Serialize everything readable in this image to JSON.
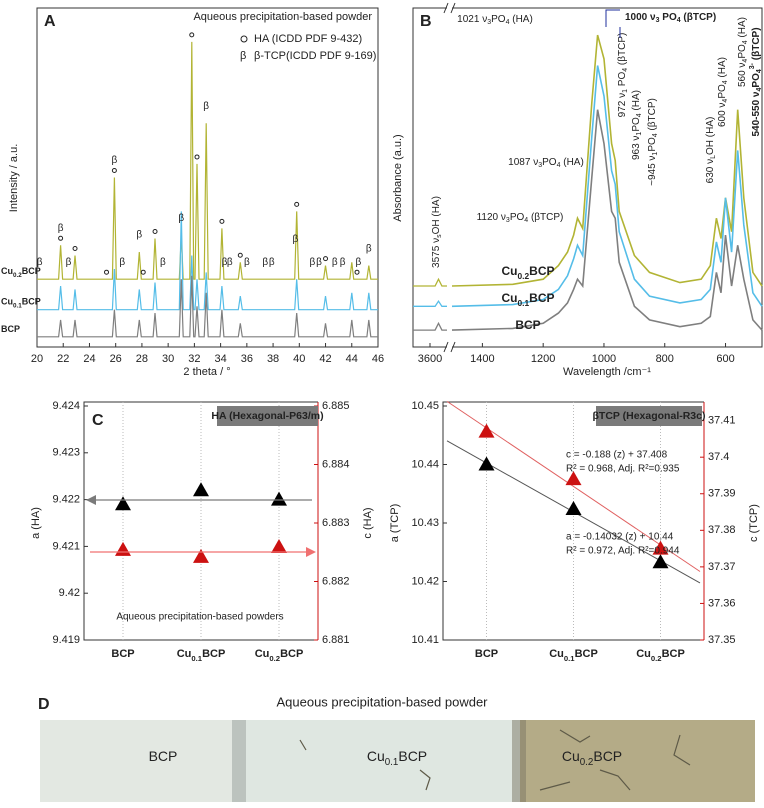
{
  "chart_data": [
    {
      "type": "line",
      "panel": "A",
      "title": "Aqueous precipitation-based powder",
      "xlabel": "2 theta / °",
      "ylabel": "Intensity / a.u.",
      "legend": [
        "HA (ICDD PDF 9-432)",
        "β-TCP(ICDD PDF 9-169)"
      ],
      "beta_symbol": "β",
      "xlim": [
        20,
        46
      ],
      "xticks": [
        20,
        22,
        24,
        26,
        28,
        30,
        32,
        34,
        36,
        38,
        40,
        42,
        44,
        46
      ],
      "ylim": [
        0,
        100
      ],
      "x": [
        20,
        21.65,
        21.8,
        21.95,
        22.75,
        22.9,
        23.05,
        25.75,
        25.9,
        26.05,
        27.65,
        27.8,
        27.95,
        28.85,
        29.0,
        29.15,
        30.85,
        31.0,
        31.15,
        31.65,
        31.8,
        31.95,
        32.05,
        32.2,
        32.35,
        32.75,
        32.9,
        33.05,
        33.95,
        34.1,
        34.25,
        35.35,
        35.5,
        35.65,
        39.65,
        39.8,
        39.95,
        41.85,
        42.0,
        42.15,
        43.85,
        44.0,
        44.15,
        45.15,
        45.3,
        45.45,
        46
      ],
      "series": [
        {
          "name": "Cu0.2BCP",
          "color": "#b2b434",
          "values": [
            20,
            20,
            30,
            20,
            20,
            27,
            20,
            20,
            50,
            20,
            20,
            28,
            20,
            20,
            32,
            20,
            20,
            33,
            20,
            20,
            90,
            20,
            20,
            54,
            20,
            20,
            66,
            20,
            20,
            35,
            20,
            20,
            25,
            20,
            20,
            40,
            20,
            20,
            24,
            20,
            20,
            25,
            20,
            20,
            24,
            20,
            20
          ]
        },
        {
          "name": "Cu0.1BCP",
          "color": "#55bde8",
          "values": [
            11,
            11,
            18,
            11,
            11,
            17,
            11,
            11,
            23,
            11,
            11,
            17,
            11,
            11,
            19,
            11,
            11,
            40,
            11,
            11,
            27,
            11,
            11,
            20,
            11,
            11,
            22,
            11,
            11,
            18,
            11,
            11,
            15,
            11,
            11,
            20,
            11,
            11,
            15,
            11,
            11,
            16,
            11,
            11,
            16,
            11,
            11
          ]
        },
        {
          "name": "BCP",
          "color": "#7f7f7f",
          "values": [
            3,
            3,
            8,
            3,
            3,
            8,
            3,
            3,
            11,
            3,
            3,
            8,
            3,
            3,
            10,
            3,
            3,
            20,
            3,
            3,
            21,
            3,
            3,
            12,
            3,
            3,
            16,
            3,
            3,
            11,
            3,
            3,
            7,
            3,
            3,
            10,
            3,
            3,
            7,
            3,
            3,
            8,
            3,
            3,
            8,
            3,
            3
          ]
        }
      ],
      "beta_peaks": [
        20.2,
        21.8,
        22.4,
        25.9,
        26.5,
        27.8,
        29.6,
        31.0,
        32.9,
        34.3,
        34.7,
        36.0,
        37.4,
        37.9,
        39.7,
        41.0,
        41.5,
        42.7,
        43.3,
        44.5,
        45.3
      ],
      "ha_peaks": [
        21.8,
        22.9,
        25.3,
        25.9,
        28.1,
        29.0,
        31.8,
        32.2,
        34.1,
        35.5,
        39.8,
        42.0,
        44.4
      ]
    },
    {
      "type": "line",
      "panel": "B",
      "xlabel": "Wavelength /cm⁻¹",
      "ylabel": "Absorbance (a.u.)",
      "xlim_break": [
        3650,
        3550
      ],
      "xticks_break": [
        3600
      ],
      "xlim": [
        1500,
        480
      ],
      "xticks": [
        1400,
        1200,
        1000,
        800,
        600
      ],
      "ylim": [
        0,
        100
      ],
      "x_break": [
        3650,
        3600,
        3585,
        3575,
        3565,
        3550
      ],
      "x": [
        1500,
        1300,
        1200,
        1150,
        1120,
        1100,
        1087,
        1070,
        1040,
        1021,
        1000,
        975,
        963,
        950,
        900,
        850,
        750,
        680,
        650,
        630,
        615,
        600,
        580,
        560,
        540,
        510,
        480
      ],
      "series": [
        {
          "name": "Cu0.2BCP",
          "color": "#b2b434",
          "values_break": [
            18,
            18,
            18,
            20,
            18,
            18
          ],
          "values": [
            18,
            18.5,
            20,
            24,
            28,
            33,
            38,
            35,
            72,
            92,
            85,
            60,
            55,
            40,
            27,
            22,
            19,
            20,
            24,
            38,
            32,
            44,
            34,
            70,
            44,
            22,
            18
          ]
        },
        {
          "name": "Cu0.1BCP",
          "color": "#55bde8",
          "values_break": [
            12,
            12,
            12,
            13.5,
            12,
            12
          ],
          "values": [
            12,
            12.5,
            14,
            17,
            21,
            26,
            30,
            27,
            62,
            83,
            74,
            52,
            48,
            34,
            20,
            15,
            13,
            14,
            17,
            31,
            25,
            44,
            28,
            58,
            36,
            16,
            12
          ]
        },
        {
          "name": "BCP",
          "color": "#7f7f7f",
          "values_break": [
            5,
            5,
            5,
            7,
            5,
            5
          ],
          "values": [
            5,
            5.5,
            7,
            10,
            13,
            17,
            20,
            18,
            50,
            70,
            60,
            40,
            38,
            25,
            12,
            8,
            6,
            7,
            9,
            22,
            16,
            33,
            18,
            30,
            20,
            8,
            5
          ]
        }
      ],
      "annotations": [
        {
          "text": "1021 ν3PO4 (HA)",
          "color": "#8a8a8a"
        },
        {
          "text": "1000 ν3 PO4 (βTCP)",
          "color": "#1f2f9c"
        },
        {
          "text": "972 ν1 PO4 (βTCP)",
          "color": "#1f2f9c"
        },
        {
          "text": "963 ν1PO4 (HA)",
          "color": "#8a8a8a"
        },
        {
          "text": "~945 ν1PO4 (βTCP)",
          "color": "#1f2f9c"
        },
        {
          "text": "1087 ν3PO4 (HA)",
          "color": "#8a8a8a"
        },
        {
          "text": "1120 ν3PO4 (βTCP)",
          "color": "#1f2f9c"
        },
        {
          "text": "3575 νsOH (HA)",
          "color": "#8a8a8a"
        },
        {
          "text": "630 νLOH (HA)",
          "color": "#8a8a8a"
        },
        {
          "text": "600 ν4PO4 (HA)",
          "color": "#8a8a8a"
        },
        {
          "text": "560 ν4PO4 (HA)",
          "color": "#8a8a8a"
        },
        {
          "text": "540-550 ν4PO43- (βTCP)",
          "color": "#1f2f9c"
        }
      ]
    },
    {
      "type": "point",
      "panel": "C",
      "header": "HA (Hexagonal-P63/m)",
      "ylabel": "a (HA)",
      "y2label": "c (HA)",
      "categories": [
        "BCP",
        "Cu0.1BCP",
        "Cu0.2BCP"
      ],
      "category_colors": [
        "#7f7f7f",
        "#4fb3e0",
        "#a9ad2c"
      ],
      "ylim": [
        9.419,
        9.424
      ],
      "yticks": [
        9.419,
        9.42,
        9.421,
        9.422,
        9.423,
        9.424
      ],
      "y2lim": [
        6.881,
        6.885
      ],
      "y2ticks": [
        6.881,
        6.882,
        6.883,
        6.884,
        6.885
      ],
      "series": [
        {
          "color": "#000000",
          "values": [
            9.4219,
            9.4222,
            9.422
          ]
        },
        {
          "color": "#cc1111",
          "axis": "y2",
          "values": [
            6.88254,
            6.88242,
            6.88259
          ]
        }
      ],
      "annotations": [
        {
          "text": "Aqueous precipitation-based powders",
          "color": "#222222"
        }
      ]
    },
    {
      "type": "point",
      "header": "βTCP (Hexagonal-R3c)",
      "ylabel": "a (TCP)",
      "y2label": "c (TCP)",
      "categories": [
        "BCP",
        "Cu0.1BCP",
        "Cu0.2BCP"
      ],
      "category_colors": [
        "#000000",
        "#4fb3e0",
        "#a9ad2c"
      ],
      "ylim": [
        10.41,
        10.45
      ],
      "yticks": [
        10.41,
        10.42,
        10.43,
        10.44,
        10.45
      ],
      "y2lim": [
        37.35,
        37.414
      ],
      "y2ticks": [
        37.35,
        37.36,
        37.37,
        37.38,
        37.39,
        37.4,
        37.41
      ],
      "fit_lines": true,
      "series": [
        {
          "color": "#000000",
          "values": [
            10.44,
            10.4324,
            10.4233
          ]
        },
        {
          "color": "#cc1111",
          "axis": "y2",
          "values": [
            37.407,
            37.394,
            37.375
          ]
        }
      ],
      "annotations": [
        {
          "text": "c = -0.188 (z) + 37.408",
          "color": "#e06060"
        },
        {
          "text": "R² = 0.968, Adj. R²=0.935",
          "color": "#e06060"
        },
        {
          "text": "a = -0.14032 (z) + 10.44",
          "color": "#808080"
        },
        {
          "text": "R² = 0.972, Adj. R²=0.944",
          "color": "#808080"
        }
      ]
    }
  ],
  "photo": {
    "label": "D",
    "title": "Aqueous precipitation-based powder",
    "samples": [
      "BCP",
      "Cu0.1BCP",
      "Cu0.2BCP"
    ]
  }
}
